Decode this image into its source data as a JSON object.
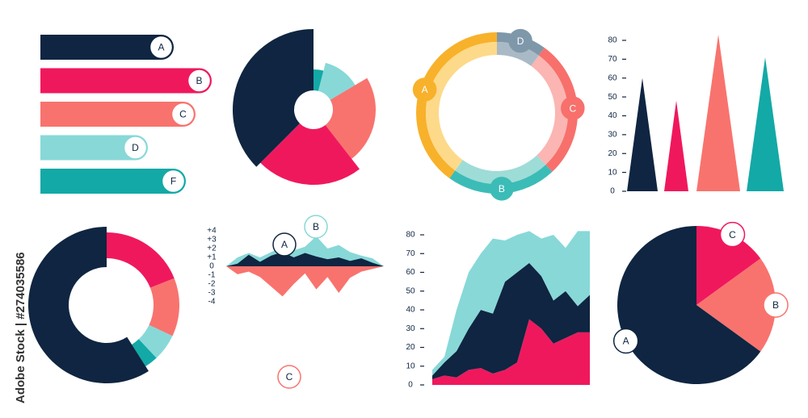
{
  "chart_data": [
    {
      "type": "hbar",
      "categories": [
        "A",
        "B",
        "C",
        "D",
        "F"
      ],
      "values": [
        165,
        212,
        192,
        133,
        180
      ],
      "colors": [
        "#0f2541",
        "#f0185d",
        "#f8736e",
        "#88d8d8",
        "#13a9a6"
      ]
    },
    {
      "type": "rose",
      "values": [
        4,
        12.5,
        23,
        23,
        37.5
      ],
      "radii": [
        50,
        60,
        77,
        93,
        100
      ],
      "colors": [
        "#13a9a6",
        "#88d8d8",
        "#f8736e",
        "#f0185d",
        "#0f2541"
      ]
    },
    {
      "type": "ring",
      "categories": [
        "D",
        "C",
        "B",
        "A"
      ],
      "values": [
        10,
        28,
        22,
        40
      ],
      "colors": [
        "#7e98aa",
        "#f7706c",
        "#3cbcb7",
        "#f8b12a"
      ],
      "light_colors": [
        "#a9bac6",
        "#fbb5b2",
        "#9edcd7",
        "#fdd98a"
      ]
    },
    {
      "type": "spike",
      "values": [
        60,
        48,
        83,
        71
      ],
      "colors": [
        "#0f2541",
        "#f0185d",
        "#f8736e",
        "#13a9a6"
      ],
      "ylim": [
        0,
        80
      ],
      "yticks": [
        0,
        10,
        20,
        30,
        40,
        50,
        60,
        70,
        80
      ]
    },
    {
      "type": "donut",
      "values": [
        19,
        13,
        6,
        3,
        59
      ],
      "colors": [
        "#f0185d",
        "#f8736e",
        "#88d8d8",
        "#13a9a6",
        "#0f2541"
      ]
    },
    {
      "type": "mirror-area",
      "series": [
        {
          "color": "#88d8d8",
          "values": [
            0,
            1.0,
            1.5,
            1.0,
            1.6,
            2.2,
            1.8,
            2.2,
            3.4,
            2.0,
            2.4,
            1.6,
            1.2,
            0.9,
            0
          ]
        },
        {
          "color": "#0f2541",
          "values": [
            0,
            0.3,
            1.3,
            0.5,
            1.2,
            1.6,
            1.0,
            1.5,
            1.1,
            0.8,
            1.0,
            0.6,
            0.9,
            0.4,
            0
          ]
        },
        {
          "color": "#f8736e",
          "values": [
            0,
            -0.9,
            -0.6,
            -1.2,
            -2.3,
            -3.4,
            -2.0,
            -0.8,
            -2.6,
            -1.2,
            -3.0,
            -1.3,
            -0.6,
            -0.3,
            0
          ]
        }
      ],
      "annotations": [
        "A",
        "B",
        "C"
      ],
      "ylim": [
        -4,
        4
      ],
      "yticks": [
        {
          "value": 4,
          "label": "+4"
        },
        {
          "value": 3,
          "label": "+3"
        },
        {
          "value": 2,
          "label": "+2"
        },
        {
          "value": 1,
          "label": "+1"
        },
        0,
        -1,
        -2,
        -3,
        -4
      ]
    },
    {
      "type": "stacked-area",
      "series": [
        {
          "color": "#f0185d",
          "values": [
            3,
            5,
            4,
            8,
            9,
            6,
            8,
            12,
            35,
            30,
            22,
            25,
            28,
            28
          ]
        },
        {
          "color": "#0f2541",
          "values": [
            2,
            7,
            14,
            22,
            31,
            32,
            47,
            48,
            30,
            28,
            23,
            25,
            14,
            20
          ]
        },
        {
          "color": "#88d8d8",
          "values": [
            3,
            3,
            22,
            30,
            30,
            40,
            22,
            20,
            17,
            20,
            35,
            23,
            40,
            34
          ]
        }
      ],
      "ylim": [
        0,
        80
      ],
      "yticks": [
        0,
        10,
        20,
        30,
        40,
        50,
        60,
        70,
        80
      ]
    },
    {
      "type": "pie",
      "categories": [
        "C",
        "B",
        "A"
      ],
      "values": [
        15,
        20,
        65
      ],
      "colors": [
        "#f0185d",
        "#f8736e",
        "#0f2541"
      ]
    }
  ],
  "watermark": "Adobe Stock | #274035586"
}
